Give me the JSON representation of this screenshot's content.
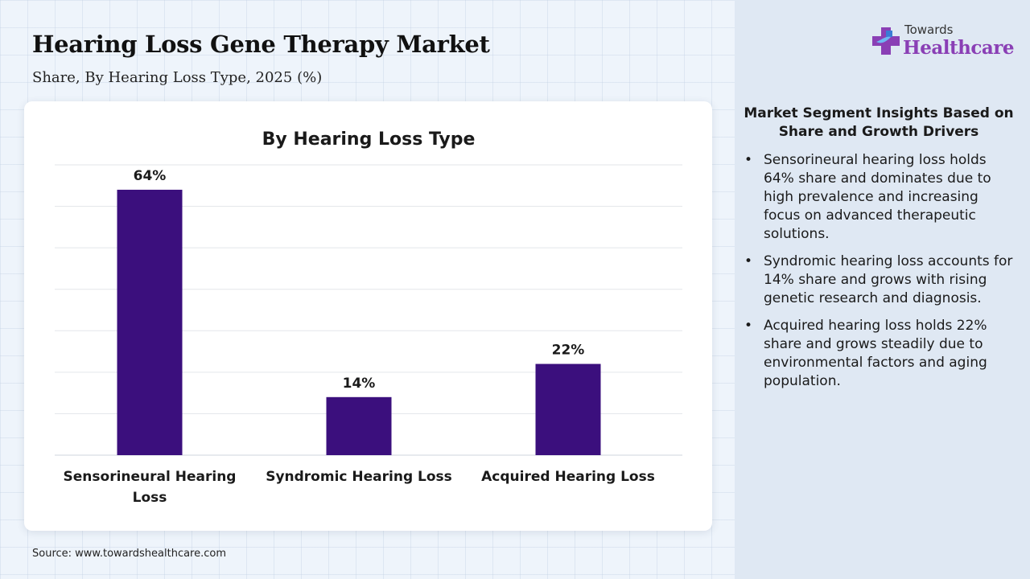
{
  "header": {
    "title": "Hearing Loss Gene Therapy Market",
    "subtitle": "Share, By Hearing Loss Type, 2025 (%)"
  },
  "logo": {
    "top": "Towards",
    "main": "Healthcare",
    "icon": "cross-logo-icon"
  },
  "chart_data": {
    "type": "bar",
    "title": "By Hearing Loss Type",
    "categories": [
      "Sensorineural Hearing Loss",
      "Syndromic Hearing Loss",
      "Acquired Hearing Loss"
    ],
    "category_lines": [
      [
        "Sensorineural Hearing",
        "Loss"
      ],
      [
        "Syndromic Hearing Loss"
      ],
      [
        "Acquired Hearing Loss"
      ]
    ],
    "values": [
      64,
      14,
      22
    ],
    "data_labels": [
      "64%",
      "14%",
      "22%"
    ],
    "xlabel": "",
    "ylabel": "",
    "ylim": [
      0,
      70
    ],
    "grid": true,
    "legend": "none",
    "bar_color": "#3b0f7d"
  },
  "insights": {
    "title": "Market Segment Insights Based on Share and Growth Drivers",
    "bullet": "•",
    "items": [
      "Sensorineural hearing loss holds 64% share and dominates due to high prevalence and increasing focus on advanced therapeutic solutions.",
      "Syndromic hearing loss accounts for 14% share and grows with rising genetic research and diagnosis.",
      "Acquired hearing loss holds 22% share and grows steadily due to environmental factors and aging population."
    ]
  },
  "source": "Source: www.towardshealthcare.com",
  "colors": {
    "accent_purple": "#8a3fb5",
    "accent_blue": "#3a7bd5",
    "bar": "#3b0f7d"
  }
}
